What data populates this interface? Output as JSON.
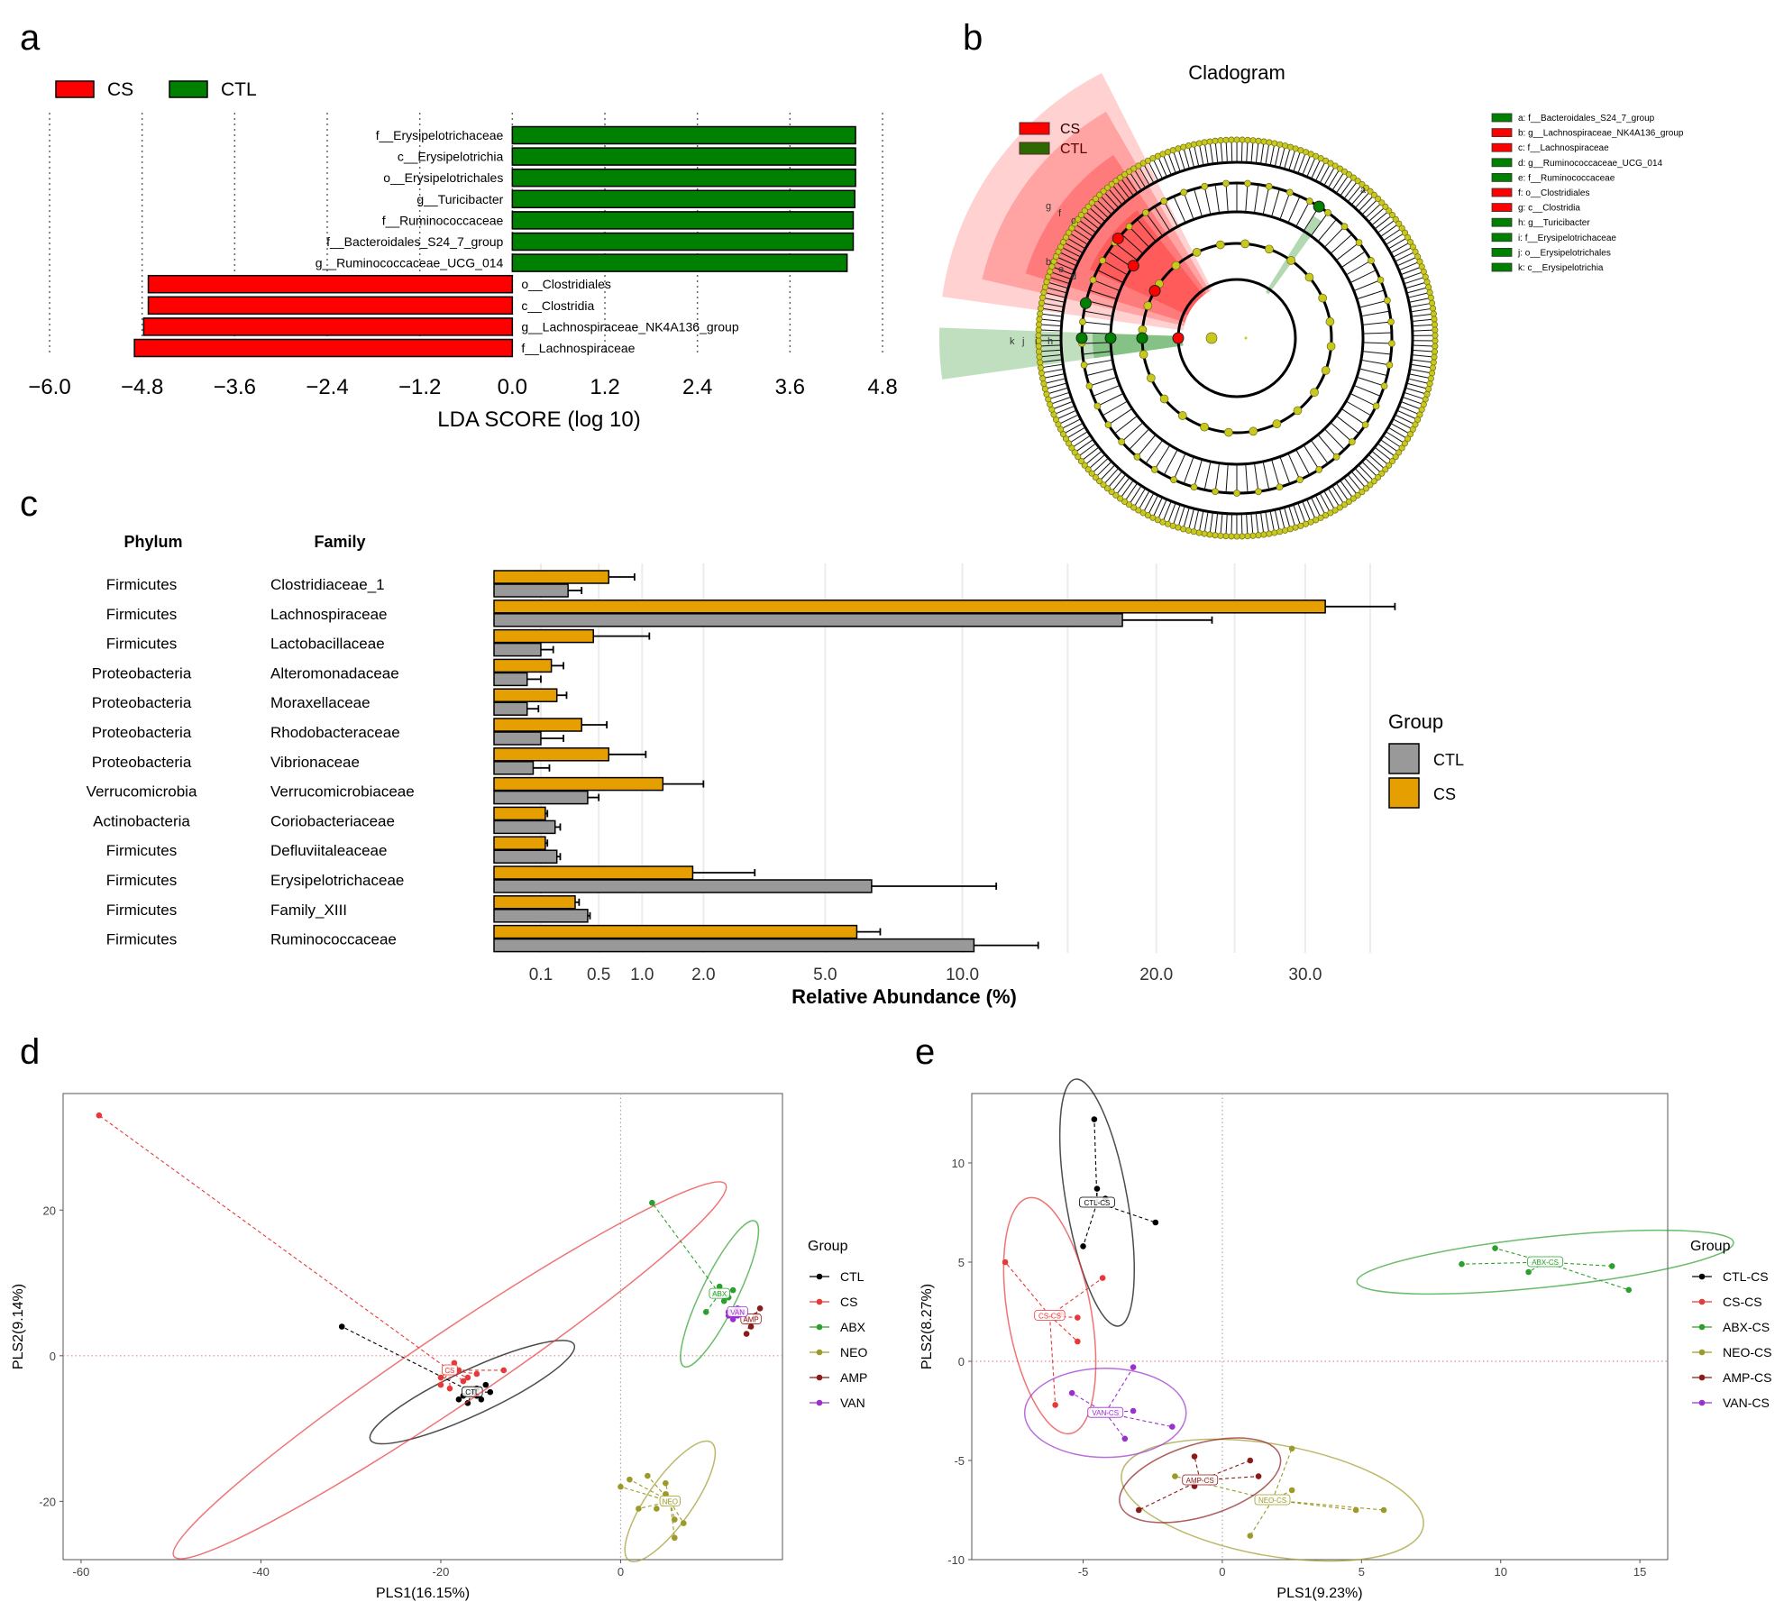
{
  "panels": {
    "a": "a",
    "b": "b",
    "c": "c",
    "d": "d",
    "e": "e"
  },
  "colors": {
    "cs_red": "#ff0000",
    "ctl_green": "#008000",
    "gray_bar": "#999999",
    "orange_bar": "#e69f00",
    "ctl": "#000000",
    "cs": "#e8393a",
    "abx": "#2ca02c",
    "neo": "#9e9a2a",
    "amp": "#8b1a1a",
    "van": "#9b30d0",
    "clado_node": "#c8c81e"
  },
  "chart_data": [
    {
      "panel": "a",
      "type": "bar",
      "orientation": "horizontal",
      "legend": [
        {
          "name": "CS",
          "color": "#ff0000"
        },
        {
          "name": "CTL",
          "color": "#008000"
        }
      ],
      "categories": [
        "f__Erysipelotrichaceae",
        "c__Erysipelotrichia",
        "o__Erysipelotrichales",
        "g__Turicibacter",
        "f__Ruminococcaceae",
        "f__Bacteroidales_S24_7_group",
        "g__Ruminococcaceae_UCG_014",
        "o__Clostridiales",
        "c__Clostridia",
        "g__Lachnospiraceae_NK4A136_group",
        "f__Lachnospiraceae"
      ],
      "groups": [
        "CTL",
        "CTL",
        "CTL",
        "CTL",
        "CTL",
        "CTL",
        "CTL",
        "CS",
        "CS",
        "CS",
        "CS"
      ],
      "values": [
        4.45,
        4.45,
        4.45,
        4.44,
        4.42,
        4.42,
        4.34,
        -4.72,
        -4.72,
        -4.78,
        -4.9
      ],
      "xlabel": "LDA SCORE (log 10)",
      "xticks": [
        "−6.0",
        "−4.8",
        "−3.6",
        "−2.4",
        "−1.2",
        "0.0",
        "1.2",
        "2.4",
        "3.6",
        "4.8"
      ],
      "xlim": [
        -6.0,
        4.8
      ]
    },
    {
      "panel": "b",
      "type": "cladogram",
      "title": "Cladogram",
      "legend": [
        {
          "name": "CS",
          "color": "#ff0000"
        },
        {
          "name": "CTL",
          "color": "#008000"
        }
      ],
      "key": [
        {
          "label": "a: f__Bacteroidales_S24_7_group",
          "group": "CTL"
        },
        {
          "label": "b: g__Lachnospiraceae_NK4A136_group",
          "group": "CS"
        },
        {
          "label": "c: f__Lachnospiraceae",
          "group": "CS"
        },
        {
          "label": "d: g__Ruminococcaceae_UCG_014",
          "group": "CTL"
        },
        {
          "label": "e: f__Ruminococcaceae",
          "group": "CTL"
        },
        {
          "label": "f: o__Clostridiales",
          "group": "CS"
        },
        {
          "label": "g: c__Clostridia",
          "group": "CS"
        },
        {
          "label": "h: g__Turicibacter",
          "group": "CTL"
        },
        {
          "label": "i: f__Erysipelotrichaceae",
          "group": "CTL"
        },
        {
          "label": "j: o__Erysipelotrichales",
          "group": "CTL"
        },
        {
          "label": "k: c__Erysipelotrichia",
          "group": "CTL"
        }
      ],
      "sector_letters": [
        "g",
        "f",
        "c",
        "b",
        "e",
        "d",
        "k",
        "j",
        "i",
        "h",
        "a"
      ]
    },
    {
      "panel": "c",
      "type": "bar",
      "orientation": "horizontal",
      "headers": {
        "phylum": "Phylum",
        "family": "Family"
      },
      "rows": [
        {
          "phylum": "Firmicutes",
          "family": "Clostridiaceae_1",
          "cs": 0.6,
          "cs_err": 0.9,
          "ctl": 0.25,
          "ctl_err": 0.35
        },
        {
          "phylum": "Firmicutes",
          "family": "Lachnospiraceae",
          "cs": 31.5,
          "cs_err": 37.0,
          "ctl": 18.0,
          "ctl_err": 23.5
        },
        {
          "phylum": "Firmicutes",
          "family": "Lactobacillaceae",
          "cs": 0.45,
          "cs_err": 1.1,
          "ctl": 0.1,
          "ctl_err": 0.16
        },
        {
          "phylum": "Proteobacteria",
          "family": "Alteromonadaceae",
          "cs": 0.15,
          "cs_err": 0.22,
          "ctl": 0.05,
          "ctl_err": 0.1
        },
        {
          "phylum": "Proteobacteria",
          "family": "Moraxellaceae",
          "cs": 0.18,
          "cs_err": 0.24,
          "ctl": 0.05,
          "ctl_err": 0.09
        },
        {
          "phylum": "Proteobacteria",
          "family": "Rhodobacteraceae",
          "cs": 0.35,
          "cs_err": 0.58,
          "ctl": 0.1,
          "ctl_err": 0.22
        },
        {
          "phylum": "Proteobacteria",
          "family": "Vibrionaceae",
          "cs": 0.6,
          "cs_err": 1.05,
          "ctl": 0.07,
          "ctl_err": 0.14
        },
        {
          "phylum": "Verrucomicrobia",
          "family": "Verrucomicrobiaceae",
          "cs": 1.3,
          "cs_err": 2.0,
          "ctl": 0.4,
          "ctl_err": 0.5
        },
        {
          "phylum": "Actinobacteria",
          "family": "Coriobacteriaceae",
          "cs": 0.12,
          "cs_err": 0.13,
          "ctl": 0.17,
          "ctl_err": 0.2
        },
        {
          "phylum": "Firmicutes",
          "family": "Defluviitaleaceae",
          "cs": 0.12,
          "cs_err": 0.13,
          "ctl": 0.18,
          "ctl_err": 0.2
        },
        {
          "phylum": "Firmicutes",
          "family": "Erysipelotrichaceae",
          "cs": 1.8,
          "cs_err": 3.1,
          "ctl": 6.5,
          "ctl_err": 11.5
        },
        {
          "phylum": "Firmicutes",
          "family": "Family_XIII",
          "cs": 0.3,
          "cs_err": 0.33,
          "ctl": 0.4,
          "ctl_err": 0.42
        },
        {
          "phylum": "Firmicutes",
          "family": "Ruminococcaceae",
          "cs": 6.0,
          "cs_err": 6.8,
          "ctl": 10.5,
          "ctl_err": 13.5
        }
      ],
      "xticks": [
        "0.1",
        "0.5",
        "1.0",
        "2.0",
        "5.0",
        "10.0",
        "20.0",
        "30.0"
      ],
      "xscale": "sqrt",
      "xlabel": "Relative Abundance (%)",
      "legend_title": "Group",
      "legend": [
        {
          "name": "CTL",
          "color": "#999999"
        },
        {
          "name": "CS",
          "color": "#e69f00"
        }
      ]
    },
    {
      "panel": "d",
      "type": "scatter",
      "xlabel": "PLS1(16.15%)",
      "ylabel": "PLS2(9.14%)",
      "xticks": [
        "-60",
        "-40",
        "-20",
        "0"
      ],
      "yticks": [
        "20",
        "0",
        "-20"
      ],
      "xlim": [
        -62,
        18
      ],
      "ylim": [
        -28,
        36
      ],
      "legend_title": "Group",
      "groups": [
        {
          "name": "CTL",
          "label": "CTL",
          "color": "#000000",
          "centroid": [
            -16.5,
            -5
          ],
          "ellipse": {
            "rx": 12.5,
            "ry": 2.5,
            "angle": -25
          },
          "points": [
            [
              -31,
              4
            ],
            [
              -17.5,
              -5.5
            ],
            [
              -15,
              -4
            ],
            [
              -16,
              -5.5
            ],
            [
              -18,
              -6
            ],
            [
              -17,
              -6.5
            ],
            [
              -14.5,
              -5
            ],
            [
              -16,
              -4.5
            ],
            [
              -15.5,
              -6
            ]
          ]
        },
        {
          "name": "CS",
          "label": "CS",
          "color": "#e8393a",
          "centroid": [
            -19,
            -2
          ],
          "ellipse": {
            "rx": 37,
            "ry": 4,
            "angle": -34
          },
          "points": [
            [
              -58,
              33
            ],
            [
              -20,
              -3
            ],
            [
              -18,
              -2
            ],
            [
              -19,
              -4.5
            ],
            [
              -17,
              -3
            ],
            [
              -13,
              -2
            ],
            [
              -18.5,
              -1
            ],
            [
              -17.5,
              -3.5
            ],
            [
              -20,
              -4
            ],
            [
              -16,
              -2.5
            ]
          ]
        },
        {
          "name": "ABX",
          "label": "ABX",
          "color": "#2ca02c",
          "centroid": [
            11,
            8.5
          ],
          "ellipse": {
            "rx": 9,
            "ry": 2,
            "angle": -64
          },
          "points": [
            [
              3.5,
              21
            ],
            [
              11,
              9.5
            ],
            [
              12,
              8
            ],
            [
              10.5,
              8.5
            ],
            [
              12.5,
              9
            ],
            [
              11.5,
              7.5
            ],
            [
              9.5,
              6
            ]
          ]
        },
        {
          "name": "NEO",
          "label": "NEO",
          "color": "#9e9a2a",
          "centroid": [
            5.5,
            -20
          ],
          "ellipse": {
            "rx": 8,
            "ry": 2.5,
            "angle": -55
          },
          "points": [
            [
              0,
              -18
            ],
            [
              1,
              -17
            ],
            [
              3,
              -16.5
            ],
            [
              2,
              -21
            ],
            [
              5,
              -19
            ],
            [
              7,
              -23
            ],
            [
              6,
              -25
            ],
            [
              4,
              -21
            ],
            [
              6,
              -22.5
            ],
            [
              5,
              -17.5
            ]
          ]
        },
        {
          "name": "AMP",
          "label": "AMP",
          "color": "#8b1a1a",
          "centroid": [
            14.5,
            5
          ],
          "ellipse": {
            "rx": 0,
            "ry": 0,
            "angle": 0
          },
          "points": [
            [
              14,
              5
            ],
            [
              15,
              5.5
            ],
            [
              14.5,
              4
            ],
            [
              15.5,
              6.5
            ],
            [
              14,
              3
            ]
          ]
        },
        {
          "name": "VAN",
          "label": "VAN",
          "color": "#9b30d0",
          "centroid": [
            13,
            6
          ],
          "ellipse": {
            "rx": 0,
            "ry": 0,
            "angle": 0
          },
          "points": [
            [
              12,
              6
            ],
            [
              13,
              5.5
            ],
            [
              12.5,
              5
            ],
            [
              13.5,
              6
            ],
            [
              12,
              5.5
            ],
            [
              13,
              6.5
            ]
          ]
        }
      ]
    },
    {
      "panel": "e",
      "type": "scatter",
      "xlabel": "PLS1(9.23%)",
      "ylabel": "PLS2(8.27%)",
      "xticks": [
        "-5",
        "0",
        "5",
        "10",
        "15"
      ],
      "yticks": [
        "10",
        "5",
        "0",
        "-5",
        "-10"
      ],
      "xlim": [
        -9,
        16
      ],
      "ylim": [
        -10,
        13.5
      ],
      "legend_title": "Group",
      "groups": [
        {
          "name": "CTL-CS",
          "label": "CTL-CS",
          "color": "#000000",
          "centroid": [
            -4.5,
            8
          ],
          "ellipse": {
            "rx": 4.5,
            "ry": 1.1,
            "angle": 80
          },
          "points": [
            [
              -4.6,
              12.2
            ],
            [
              -4.5,
              8.7
            ],
            [
              -4.2,
              8.2
            ],
            [
              -2.4,
              7
            ],
            [
              -5,
              5.8
            ]
          ]
        },
        {
          "name": "CS-CS",
          "label": "CS-CS",
          "color": "#e8393a",
          "centroid": [
            -6.2,
            2.3
          ],
          "ellipse": {
            "rx": 4.3,
            "ry": 1.5,
            "angle": 80
          },
          "points": [
            [
              -7.8,
              5
            ],
            [
              -5.2,
              2.2
            ],
            [
              -5.8,
              2.4
            ],
            [
              -4.3,
              4.2
            ],
            [
              -5.2,
              1
            ],
            [
              -6,
              -2.2
            ]
          ]
        },
        {
          "name": "ABX-CS",
          "label": "ABX-CS",
          "color": "#2ca02c",
          "centroid": [
            11.6,
            5
          ],
          "ellipse": {
            "rx": 6.8,
            "ry": 0.9,
            "angle": -6
          },
          "points": [
            [
              8.6,
              4.9
            ],
            [
              9.8,
              5.7
            ],
            [
              11,
              4.5
            ],
            [
              14,
              4.8
            ],
            [
              14.6,
              3.6
            ]
          ]
        },
        {
          "name": "NEO-CS",
          "label": "NEO-CS",
          "color": "#9e9a2a",
          "centroid": [
            1.8,
            -7
          ],
          "ellipse": {
            "rx": 5.5,
            "ry": 2,
            "angle": 10
          },
          "points": [
            [
              -1.7,
              -5.8
            ],
            [
              2.5,
              -4.4
            ],
            [
              2.5,
              -6.5
            ],
            [
              4.8,
              -7.5
            ],
            [
              5.8,
              -7.5
            ],
            [
              1,
              -8.8
            ]
          ]
        },
        {
          "name": "AMP-CS",
          "label": "AMP-CS",
          "color": "#8b1a1a",
          "centroid": [
            -0.8,
            -6
          ],
          "ellipse": {
            "rx": 3,
            "ry": 1.3,
            "angle": -17
          },
          "points": [
            [
              -3,
              -7.5
            ],
            [
              -1,
              -4.8
            ],
            [
              1,
              -5
            ],
            [
              1.3,
              -5.8
            ],
            [
              -1,
              -6.3
            ]
          ]
        },
        {
          "name": "VAN-CS",
          "label": "VAN-CS",
          "color": "#9b30d0",
          "centroid": [
            -4.2,
            -2.6
          ],
          "ellipse": {
            "rx": 2.9,
            "ry": 1.6,
            "angle": 0
          },
          "points": [
            [
              -5.4,
              -1.6
            ],
            [
              -3.2,
              -0.3
            ],
            [
              -3.5,
              -3.9
            ],
            [
              -1.8,
              -3.3
            ],
            [
              -3.2,
              -2.5
            ]
          ]
        }
      ]
    }
  ]
}
